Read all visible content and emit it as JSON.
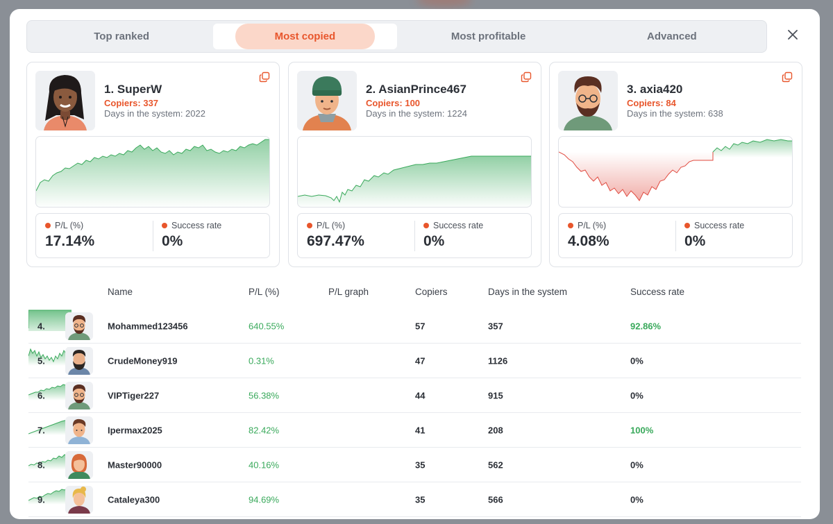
{
  "tabs": [
    {
      "label": "Top ranked",
      "active": false
    },
    {
      "label": "Most copied",
      "active": true
    },
    {
      "label": "Most profitable",
      "active": false
    },
    {
      "label": "Advanced",
      "active": false
    }
  ],
  "colors": {
    "accent": "#e8562c",
    "positive": "#39a95b",
    "negative": "#e04a3f"
  },
  "cards": [
    {
      "name": "1. SuperW",
      "copiers": "Copiers: 337",
      "days": "Days in the system: 2022",
      "pl_label": "P/L (%)",
      "pl_value": "17.14%",
      "success_label": "Success rate",
      "success_value": "0%"
    },
    {
      "name": "2. AsianPrince467",
      "copiers": "Copiers: 100",
      "days": "Days in the system: 1224",
      "pl_label": "P/L (%)",
      "pl_value": "697.47%",
      "success_label": "Success rate",
      "success_value": "0%"
    },
    {
      "name": "3. axia420",
      "copiers": "Copiers: 84",
      "days": "Days in the system: 638",
      "pl_label": "P/L (%)",
      "pl_value": "4.08%",
      "success_label": "Success rate",
      "success_value": "0%"
    }
  ],
  "table": {
    "headers": {
      "name": "Name",
      "pl": "P/L (%)",
      "graph": "P/L graph",
      "copiers": "Copiers",
      "days": "Days in the system",
      "success": "Success rate"
    },
    "rows": [
      {
        "rank": "4.",
        "name": "Mohammed123456",
        "pl": "640.55%",
        "copiers": "57",
        "days": "357",
        "success": "92.86%"
      },
      {
        "rank": "5.",
        "name": "CrudeMoney919",
        "pl": "0.31%",
        "copiers": "47",
        "days": "1126",
        "success": "0%"
      },
      {
        "rank": "6.",
        "name": "VIPTiger227",
        "pl": "56.38%",
        "copiers": "44",
        "days": "915",
        "success": "0%"
      },
      {
        "rank": "7.",
        "name": "Ipermax2025",
        "pl": "82.42%",
        "copiers": "41",
        "days": "208",
        "success": "100%"
      },
      {
        "rank": "8.",
        "name": "Master90000",
        "pl": "40.16%",
        "copiers": "35",
        "days": "562",
        "success": "0%"
      },
      {
        "rank": "9.",
        "name": "Cataleya300",
        "pl": "94.69%",
        "copiers": "35",
        "days": "566",
        "success": "0%"
      }
    ]
  },
  "icons": {
    "close": "close-icon",
    "copy": "copy-icon"
  }
}
